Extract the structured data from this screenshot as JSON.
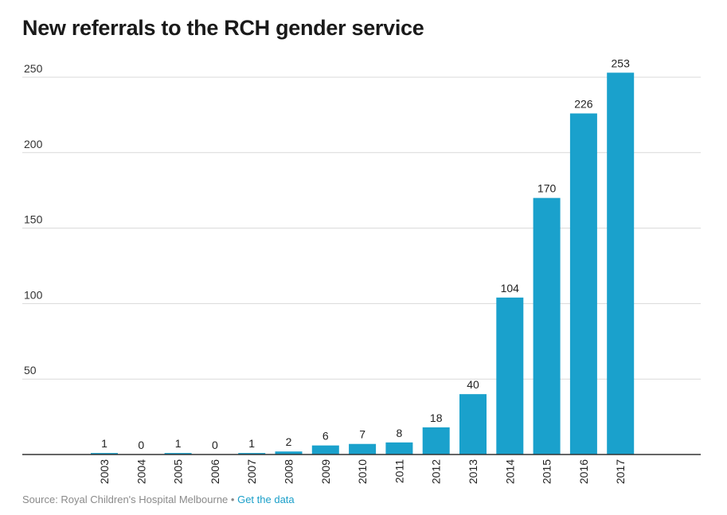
{
  "chart_data": {
    "type": "bar",
    "title": "New referrals to the RCH gender service",
    "categories": [
      "2003",
      "2004",
      "2005",
      "2006",
      "2007",
      "2008",
      "2009",
      "2010",
      "2011",
      "2012",
      "2013",
      "2014",
      "2015",
      "2016",
      "2017"
    ],
    "values": [
      1,
      0,
      1,
      0,
      1,
      2,
      6,
      7,
      8,
      18,
      40,
      104,
      170,
      226,
      253
    ],
    "xlabel": "",
    "ylabel": "",
    "ylim": [
      0,
      250
    ],
    "yticks": [
      50,
      100,
      150,
      200,
      250
    ],
    "grid": true,
    "bar_color": "#1aa1cc",
    "data_labels": true
  },
  "footer": {
    "source": "Source: Royal Children's Hospital Melbourne",
    "separator": "•",
    "link": "Get the data"
  },
  "colors": {
    "bar": "#1aa1cc",
    "link": "#1a9fc9",
    "grid": "#d9d9d9",
    "axis": "#333333"
  }
}
